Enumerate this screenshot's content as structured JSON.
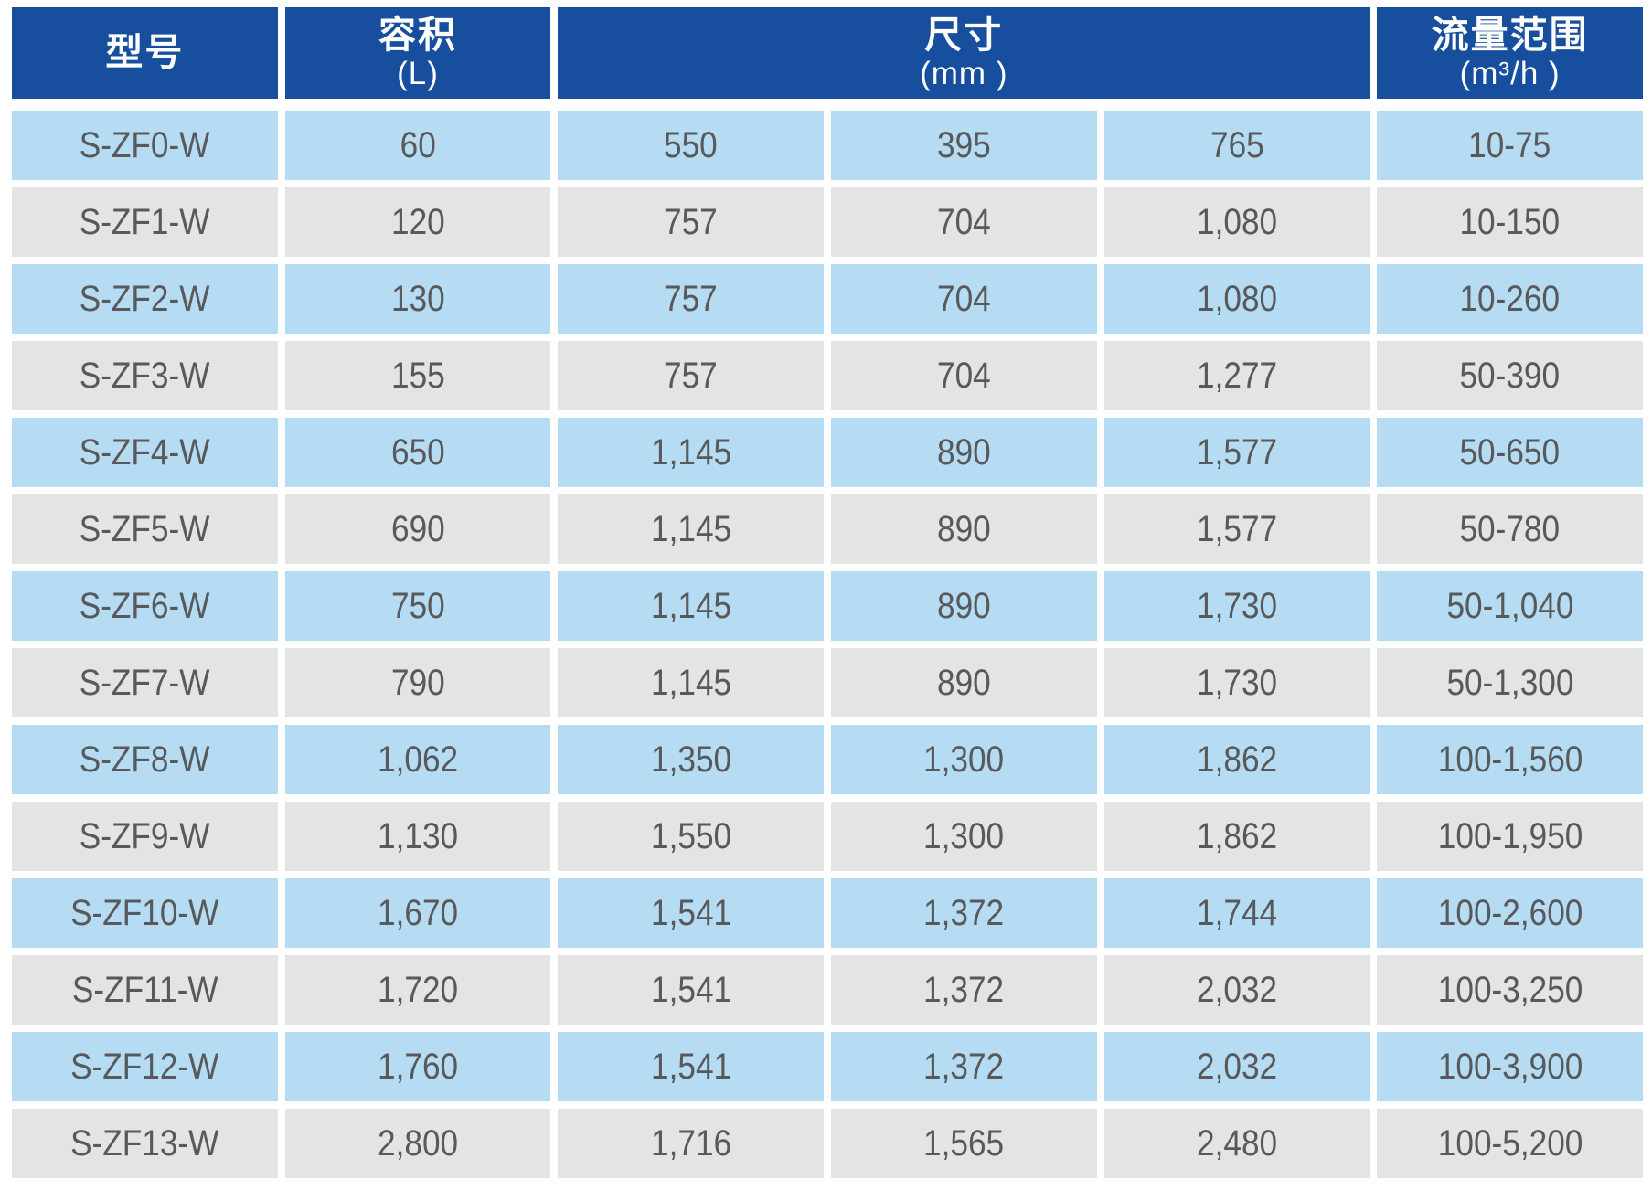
{
  "page": {
    "background": "#ffffff"
  },
  "table": {
    "headers": {
      "model": "型号",
      "volume": {
        "title": "容积",
        "unit": "(L)"
      },
      "dimensions": {
        "title": "尺寸",
        "unit": "(mm )"
      },
      "flow_range": {
        "title": "流量范围",
        "unit": "(m³/h )"
      }
    },
    "colors": {
      "header_bg": "#174f9e",
      "header_text": "#ffffff",
      "row_blue": "#b6dcf3",
      "row_gray": "#e3e4e4",
      "cell_text": "#58595b"
    },
    "rows": [
      [
        "S-ZF0-W",
        "60",
        "550",
        "395",
        "765",
        "10-75"
      ],
      [
        "S-ZF1-W",
        "120",
        "757",
        "704",
        "1,080",
        "10-150"
      ],
      [
        "S-ZF2-W",
        "130",
        "757",
        "704",
        "1,080",
        "10-260"
      ],
      [
        "S-ZF3-W",
        "155",
        "757",
        "704",
        "1,277",
        "50-390"
      ],
      [
        "S-ZF4-W",
        "650",
        "1,145",
        "890",
        "1,577",
        "50-650"
      ],
      [
        "S-ZF5-W",
        "690",
        "1,145",
        "890",
        "1,577",
        "50-780"
      ],
      [
        "S-ZF6-W",
        "750",
        "1,145",
        "890",
        "1,730",
        "50-1,040"
      ],
      [
        "S-ZF7-W",
        "790",
        "1,145",
        "890",
        "1,730",
        "50-1,300"
      ],
      [
        "S-ZF8-W",
        "1,062",
        "1,350",
        "1,300",
        "1,862",
        "100-1,560"
      ],
      [
        "S-ZF9-W",
        "1,130",
        "1,550",
        "1,300",
        "1,862",
        "100-1,950"
      ],
      [
        "S-ZF10-W",
        "1,670",
        "1,541",
        "1,372",
        "1,744",
        "100-2,600"
      ],
      [
        "S-ZF11-W",
        "1,720",
        "1,541",
        "1,372",
        "2,032",
        "100-3,250"
      ],
      [
        "S-ZF12-W",
        "1,760",
        "1,541",
        "1,372",
        "2,032",
        "100-3,900"
      ],
      [
        "S-ZF13-W",
        "2,800",
        "1,716",
        "1,565",
        "2,480",
        "100-5,200"
      ]
    ]
  }
}
